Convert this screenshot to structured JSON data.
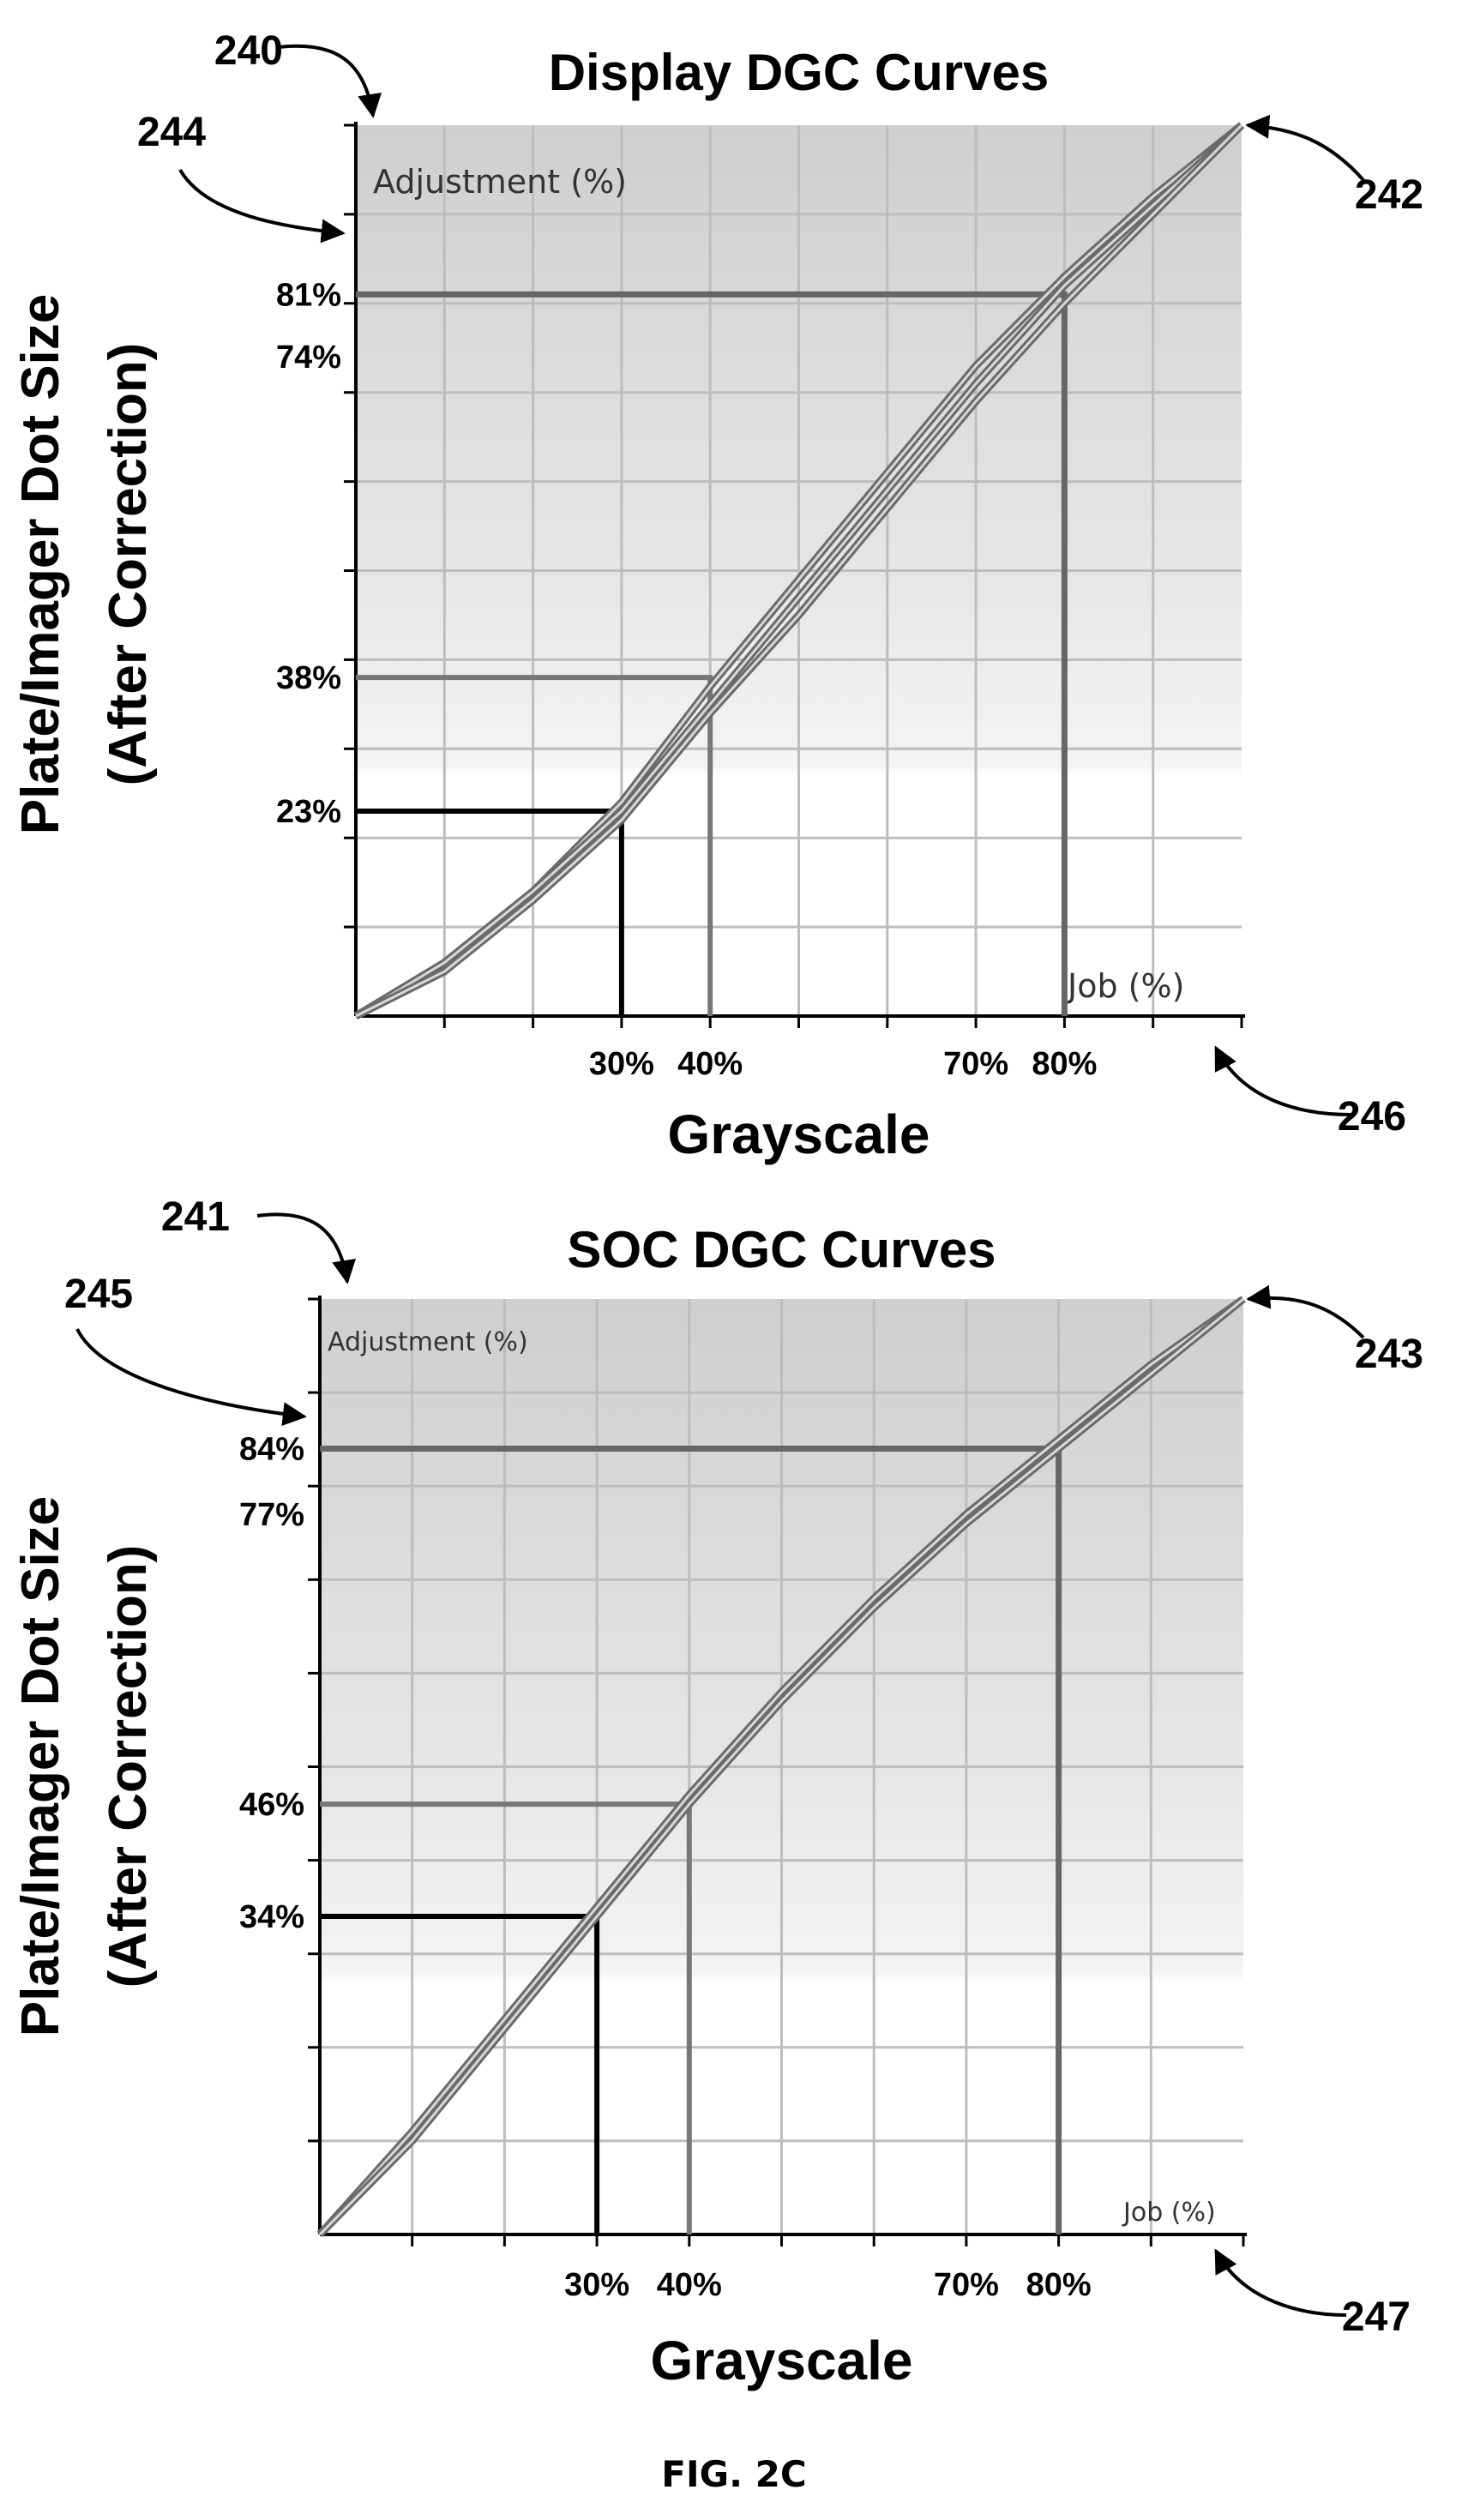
{
  "figure_label": "FIG. 2C",
  "colors": {
    "curve": "#6a6a6a",
    "curve_highlight": "#d8d8d8",
    "grid": "#bdbdbd",
    "guide_dark": "#000000",
    "guide_mid": "#777777",
    "guide_main": "#666666"
  },
  "chart_data": [
    {
      "type": "line",
      "title": "Display DGC Curves",
      "xlabel": "Grayscale",
      "ylabel_line1": "Plate/Imager Dot Size",
      "ylabel_line2": "(After Correction)",
      "corner_top": "Adjustment (%)",
      "corner_bottom": "Job (%)",
      "xlim": [
        0,
        100
      ],
      "ylim": [
        0,
        100
      ],
      "grid": true,
      "refs": {
        "figure": "240",
        "curve_end": "242",
        "y_axis": "244",
        "x_axis": "246"
      },
      "x_ticks": [
        {
          "value": 30,
          "label": "30%"
        },
        {
          "value": 40,
          "label": "40%"
        },
        {
          "value": 70,
          "label": "70%"
        },
        {
          "value": 80,
          "label": "80%"
        }
      ],
      "y_ticks": [
        {
          "value": 81,
          "label": "81%"
        },
        {
          "value": 74,
          "label": "74%"
        },
        {
          "value": 38,
          "label": "38%"
        },
        {
          "value": 23,
          "label": "23%"
        }
      ],
      "guides": [
        {
          "x": 30,
          "y": 23,
          "tone": "dark"
        },
        {
          "x": 40,
          "y": 38,
          "tone": "mid"
        },
        {
          "x": 80,
          "y": 81,
          "tone": "main"
        }
      ],
      "series": [
        {
          "x": [
            0,
            10,
            20,
            30,
            40,
            50,
            60,
            70,
            80,
            90,
            100
          ],
          "y": [
            0,
            6,
            14,
            24,
            37,
            49,
            61,
            73,
            83,
            92,
            100
          ]
        },
        {
          "x": [
            0,
            10,
            20,
            30,
            40,
            50,
            60,
            70,
            80,
            90,
            100
          ],
          "y": [
            0,
            6,
            14,
            23,
            35,
            47,
            59,
            71,
            82,
            91,
            100
          ]
        },
        {
          "x": [
            0,
            10,
            20,
            30,
            40,
            50,
            60,
            70,
            80,
            90,
            100
          ],
          "y": [
            0,
            5,
            13,
            22,
            34,
            45,
            57,
            69,
            80,
            90,
            100
          ]
        }
      ]
    },
    {
      "type": "line",
      "title": "SOC DGC Curves",
      "xlabel": "Grayscale",
      "ylabel_line1": "Plate/Imager Dot Size",
      "ylabel_line2": "(After Correction)",
      "corner_top": "Adjustment (%)",
      "corner_bottom": "Job (%)",
      "xlim": [
        0,
        100
      ],
      "ylim": [
        0,
        100
      ],
      "grid": true,
      "refs": {
        "figure": "241",
        "curve_end": "243",
        "y_axis": "245",
        "x_axis": "247"
      },
      "x_ticks": [
        {
          "value": 30,
          "label": "30%"
        },
        {
          "value": 40,
          "label": "40%"
        },
        {
          "value": 70,
          "label": "70%"
        },
        {
          "value": 80,
          "label": "80%"
        }
      ],
      "y_ticks": [
        {
          "value": 84,
          "label": "84%"
        },
        {
          "value": 77,
          "label": "77%"
        },
        {
          "value": 46,
          "label": "46%"
        },
        {
          "value": 34,
          "label": "34%"
        }
      ],
      "guides": [
        {
          "x": 30,
          "y": 34,
          "tone": "dark"
        },
        {
          "x": 40,
          "y": 46,
          "tone": "mid"
        },
        {
          "x": 80,
          "y": 84,
          "tone": "main"
        }
      ],
      "series": [
        {
          "x": [
            0,
            10,
            20,
            30,
            40,
            50,
            60,
            70,
            80,
            90,
            100
          ],
          "y": [
            0,
            11,
            23,
            35,
            47,
            58,
            68,
            77,
            85,
            93,
            100
          ]
        },
        {
          "x": [
            0,
            10,
            20,
            30,
            40,
            50,
            60,
            70,
            80,
            90,
            100
          ],
          "y": [
            0,
            10,
            22,
            34,
            46,
            57,
            67,
            76,
            84,
            92,
            100
          ]
        }
      ]
    }
  ]
}
